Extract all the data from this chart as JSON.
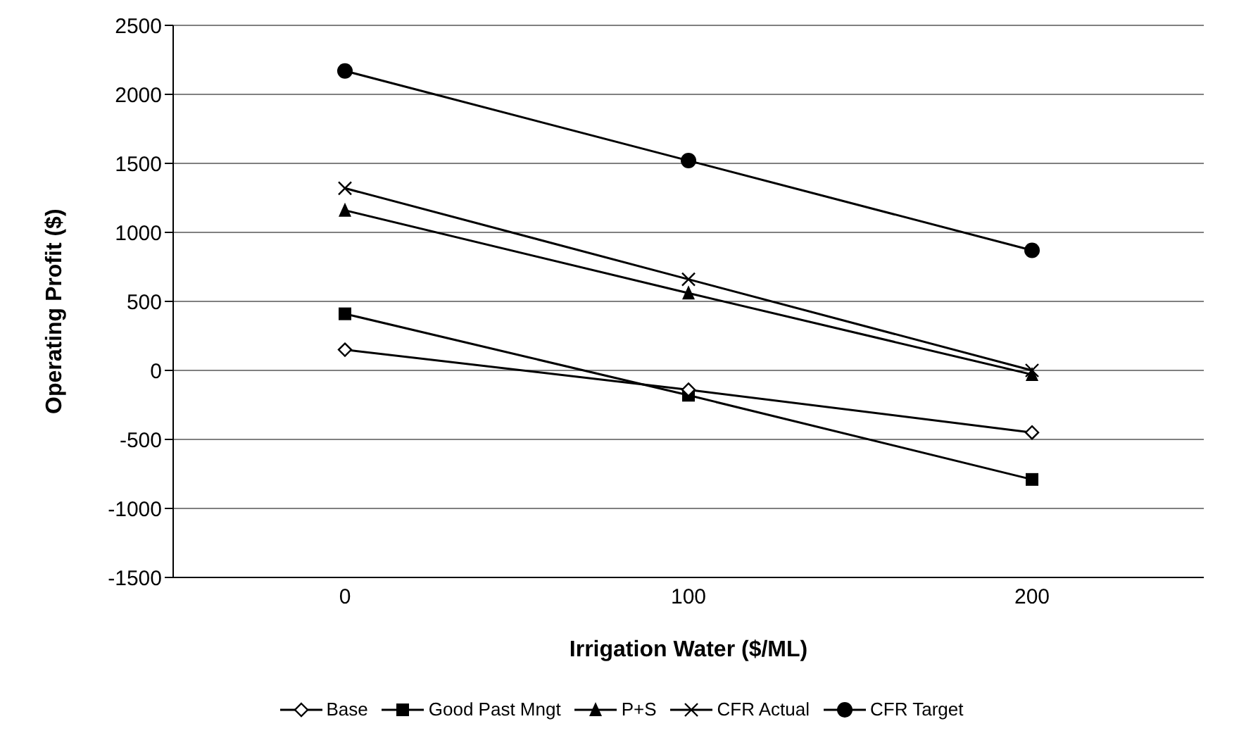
{
  "chart_data": {
    "type": "line",
    "xlabel": "Irrigation Water ($/ML)",
    "ylabel": "Operating Profit ($)",
    "categories": [
      "0",
      "100",
      "200"
    ],
    "series": [
      {
        "name": "Base",
        "color": "#000000",
        "marker": "diamond",
        "values": [
          150,
          -140,
          -450
        ]
      },
      {
        "name": "Good Past Mngt",
        "color": "#000000",
        "marker": "square",
        "values": [
          410,
          -180,
          -790
        ]
      },
      {
        "name": "P+S",
        "color": "#000000",
        "marker": "triangle",
        "values": [
          1160,
          560,
          -30
        ]
      },
      {
        "name": "CFR Actual",
        "color": "#000000",
        "marker": "cross",
        "values": [
          1320,
          660,
          0
        ]
      },
      {
        "name": "CFR Target",
        "color": "#000000",
        "marker": "circle",
        "values": [
          2170,
          1520,
          870
        ]
      }
    ],
    "ylim": [
      -1500,
      2500
    ],
    "yticks": [
      -1500,
      -1000,
      -500,
      0,
      500,
      1000,
      1500,
      2000,
      2500
    ],
    "grid": "y",
    "legend": "bottom",
    "line_style": "solid"
  }
}
